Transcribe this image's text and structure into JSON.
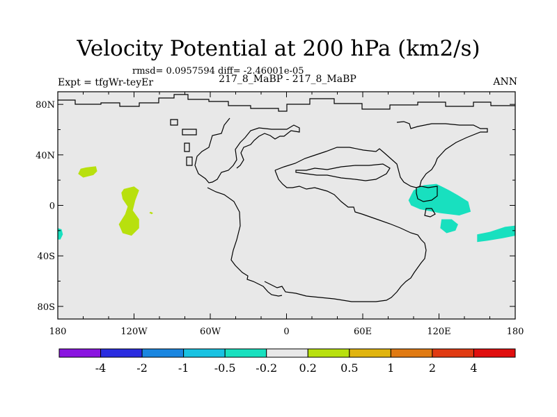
{
  "header": {
    "title": "Velocity Potential at 200 hPa (km2/s)",
    "stats": "rmsd= 0.0957594   diff= -2.46001e-05",
    "left_label": "Expt = tfgWr-teyEr",
    "center_label": "217_8_MaBP - 217_8_MaBP",
    "right_label": "ANN"
  },
  "chart_data": {
    "type": "heatmap",
    "projection": "cylindrical-equidistant",
    "title": "Velocity Potential at 200 hPa (km2/s)",
    "xlim": [
      -180,
      180
    ],
    "ylim": [
      -90,
      90
    ],
    "xticks": [
      -180,
      -120,
      -60,
      0,
      60,
      120,
      180
    ],
    "xtick_labels": [
      "180",
      "120W",
      "60W",
      "0",
      "60E",
      "120E",
      "180"
    ],
    "yticks": [
      80,
      40,
      0,
      -40,
      -80
    ],
    "ytick_labels": [
      "80N",
      "40N",
      "0",
      "40S",
      "80S"
    ],
    "background_value_range": [
      -0.2,
      0.2
    ],
    "colorbar": {
      "levels": [
        "-4",
        "-2",
        "-1",
        "-0.5",
        "-0.2",
        "0.2",
        "0.5",
        "1",
        "2",
        "4"
      ],
      "colors": [
        "#8a14e0",
        "#2a2ce0",
        "#1a86e0",
        "#18c2e2",
        "#18e0bf",
        "#e8e8e8",
        "#b8e00e",
        "#e0b40e",
        "#e07a12",
        "#e03a12",
        "#e00e0e"
      ]
    },
    "anomalies": [
      {
        "name": "north-pacific-positive",
        "sign": "positive",
        "bin": "0.2 to 0.5",
        "color": "#b8e00e",
        "outline": [
          [
            -158,
            30
          ],
          [
            -150,
            31
          ],
          [
            -149,
            27
          ],
          [
            -152,
            24
          ],
          [
            -160,
            22
          ],
          [
            -164,
            25
          ],
          [
            -162,
            29
          ]
        ]
      },
      {
        "name": "east-pacific-positive",
        "sign": "positive",
        "bin": "0.2 to 0.5",
        "color": "#b8e00e",
        "outline": [
          [
            -128,
            13
          ],
          [
            -120,
            15
          ],
          [
            -116,
            12
          ],
          [
            -119,
            4
          ],
          [
            -121,
            -4
          ],
          [
            -116,
            -11
          ],
          [
            -116,
            -18
          ],
          [
            -122,
            -24
          ],
          [
            -129,
            -22
          ],
          [
            -132,
            -15
          ],
          [
            -127,
            -7
          ],
          [
            -125,
            -1
          ],
          [
            -129,
            5
          ],
          [
            -130,
            10
          ]
        ]
      },
      {
        "name": "east-pacific-speck",
        "sign": "positive",
        "bin": "0.2 to 0.5",
        "color": "#b8e00e",
        "outline": [
          [
            -107,
            -5
          ],
          [
            -105,
            -6
          ],
          [
            -106,
            -7
          ],
          [
            -108,
            -6
          ]
        ]
      },
      {
        "name": "dateline-south-negative",
        "sign": "negative",
        "bin": "-0.5 to -0.2",
        "color": "#18e0bf",
        "outline": [
          [
            -180,
            -18
          ],
          [
            -177,
            -19
          ],
          [
            -176,
            -23
          ],
          [
            -178,
            -27
          ],
          [
            -180,
            -27
          ]
        ]
      },
      {
        "name": "maritime-continent-negative",
        "sign": "negative",
        "bin": "-0.5 to -0.2",
        "color": "#18e0bf",
        "outline": [
          [
            96,
            4
          ],
          [
            100,
            12
          ],
          [
            108,
            16
          ],
          [
            118,
            17
          ],
          [
            128,
            12
          ],
          [
            135,
            8
          ],
          [
            143,
            3
          ],
          [
            145,
            -5
          ],
          [
            136,
            -8
          ],
          [
            120,
            -6
          ],
          [
            105,
            -3
          ],
          [
            98,
            0
          ]
        ]
      },
      {
        "name": "indonesia-south-negative",
        "sign": "negative",
        "bin": "-0.5 to -0.2",
        "color": "#18e0bf",
        "outline": [
          [
            122,
            -11
          ],
          [
            130,
            -11
          ],
          [
            135,
            -15
          ],
          [
            133,
            -20
          ],
          [
            126,
            -22
          ],
          [
            121,
            -18
          ]
        ]
      },
      {
        "name": "south-pacific-negative",
        "sign": "negative",
        "bin": "-0.5 to -0.2",
        "color": "#18e0bf",
        "outline": [
          [
            150,
            -23
          ],
          [
            160,
            -21
          ],
          [
            172,
            -17
          ],
          [
            180,
            -16
          ],
          [
            180,
            -24
          ],
          [
            170,
            -26
          ],
          [
            158,
            -28
          ],
          [
            150,
            -29
          ]
        ]
      }
    ]
  }
}
